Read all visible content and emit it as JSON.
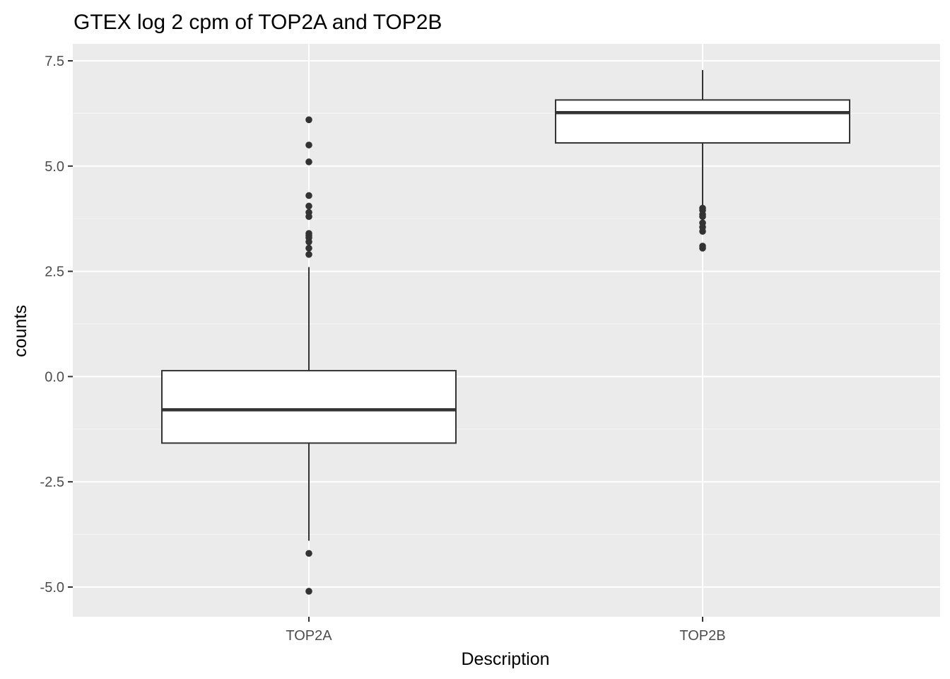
{
  "chart_data": {
    "type": "boxplot",
    "title": "GTEX log 2 cpm  of TOP2A and TOP2B",
    "xlabel": "Description",
    "ylabel": "counts",
    "categories": [
      "TOP2A",
      "TOP2B"
    ],
    "ylim": [
      -5.7,
      7.9
    ],
    "yticks": [
      -5.0,
      -2.5,
      0.0,
      2.5,
      5.0,
      7.5
    ],
    "ytick_labels": [
      "-5.0",
      "-2.5",
      "0.0",
      "2.5",
      "5.0",
      "7.5"
    ],
    "grid": true,
    "boxes": [
      {
        "category": "TOP2A",
        "whisker_low": -3.9,
        "q1": -1.58,
        "median": -0.79,
        "q3": 0.14,
        "whisker_high": 2.6,
        "outliers": [
          6.1,
          5.5,
          5.1,
          4.3,
          4.05,
          3.9,
          3.8,
          3.4,
          3.35,
          3.3,
          3.2,
          3.05,
          2.9,
          -4.2,
          -5.1
        ]
      },
      {
        "category": "TOP2B",
        "whisker_low": 4.0,
        "q1": 5.55,
        "median": 6.27,
        "q3": 6.57,
        "whisker_high": 7.28,
        "outliers": [
          4.0,
          3.95,
          3.85,
          3.8,
          3.65,
          3.55,
          3.45,
          3.1,
          3.05
        ]
      }
    ],
    "colors": {
      "panel_background": "#ebebeb",
      "grid_major": "#ffffff",
      "grid_minor": "#f5f5f5",
      "box_fill": "#ffffff",
      "box_stroke": "#333333",
      "outlier": "#333333",
      "tick_text": "#4d4d4d"
    }
  }
}
